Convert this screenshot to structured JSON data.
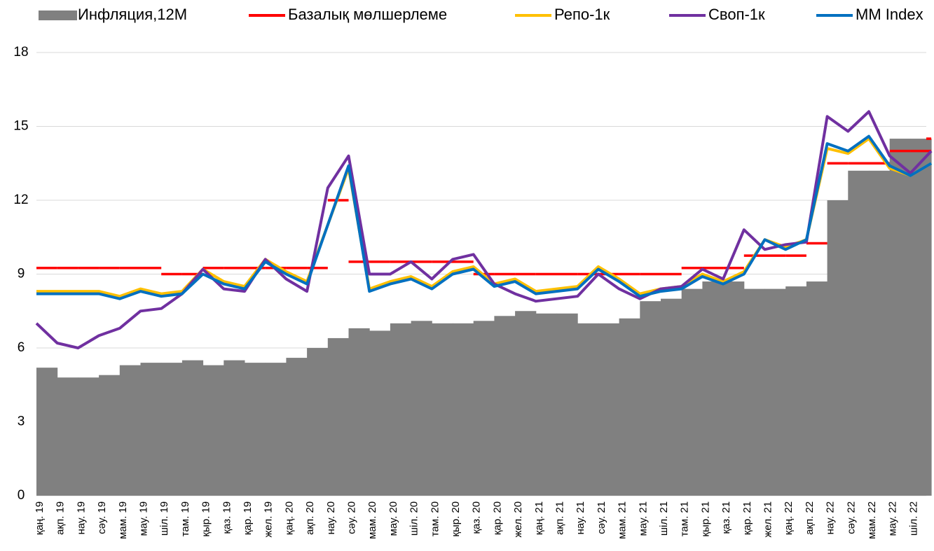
{
  "chart_data": {
    "type": "line",
    "categories": [
      "қаң. 19",
      "ақп. 19",
      "нау. 19",
      "сәу. 19",
      "мам. 19",
      "мау. 19",
      "шіл. 19",
      "там. 19",
      "қыр. 19",
      "қаз. 19",
      "қар. 19",
      "жел. 19",
      "қаң. 20",
      "ақп. 20",
      "нау. 20",
      "сәу. 20",
      "мам. 20",
      "мау. 20",
      "шіл. 20",
      "там. 20",
      "қыр. 20",
      "қаз. 20",
      "қар. 20",
      "жел. 20",
      "қаң. 21",
      "ақп. 21",
      "нау. 21",
      "сәу. 21",
      "мам. 21",
      "мау. 21",
      "шіл. 21",
      "там. 21",
      "қыр. 21",
      "қаз. 21",
      "қар. 21",
      "жел. 21",
      "қаң. 22",
      "ақп. 22",
      "нау. 22",
      "сәу. 22",
      "мам. 22",
      "мау. 22",
      "шіл. 22",
      null
    ],
    "series": [
      {
        "name": "Инфляция,12М",
        "type": "area",
        "color": "#808080",
        "values": [
          5.2,
          4.8,
          4.8,
          4.9,
          5.3,
          5.4,
          5.4,
          5.5,
          5.3,
          5.5,
          5.4,
          5.4,
          5.6,
          6.0,
          6.4,
          6.8,
          6.7,
          7.0,
          7.1,
          7.0,
          7.0,
          7.1,
          7.3,
          7.5,
          7.4,
          7.4,
          7.0,
          7.0,
          7.2,
          7.9,
          8.0,
          8.4,
          8.7,
          8.7,
          8.4,
          8.4,
          8.5,
          8.7,
          12.0,
          13.2,
          13.2,
          14.5,
          14.5,
          14.5
        ]
      },
      {
        "name": "Базалық мөлшерлеме",
        "type": "step",
        "color": "#ff0000",
        "values": [
          9.25,
          9.25,
          9.25,
          9.25,
          9.25,
          9.25,
          9.0,
          9.0,
          9.25,
          9.25,
          9.25,
          9.25,
          9.25,
          9.25,
          12.0,
          9.5,
          9.5,
          9.5,
          9.5,
          9.5,
          9.5,
          9.0,
          9.0,
          9.0,
          9.0,
          9.0,
          9.0,
          9.0,
          9.0,
          9.0,
          9.0,
          9.25,
          9.25,
          9.25,
          9.75,
          9.75,
          9.75,
          10.25,
          13.5,
          13.5,
          13.5,
          14.0,
          14.0,
          14.5
        ]
      },
      {
        "name": "Репо-1к",
        "type": "line",
        "color": "#ffc000",
        "values": [
          8.3,
          8.3,
          8.3,
          8.3,
          8.1,
          8.4,
          8.2,
          8.3,
          9.2,
          8.7,
          8.5,
          9.6,
          9.1,
          8.7,
          11.0,
          13.3,
          8.4,
          8.7,
          8.9,
          8.5,
          9.1,
          9.3,
          8.6,
          8.8,
          8.3,
          8.4,
          8.5,
          9.3,
          8.8,
          8.2,
          8.4,
          8.5,
          9.0,
          8.7,
          9.1,
          10.4,
          10.1,
          10.4,
          14.1,
          13.9,
          14.5,
          13.3,
          13.0,
          13.5
        ]
      },
      {
        "name": "Своп-1к",
        "type": "line",
        "color": "#7030a0",
        "values": [
          7.0,
          6.2,
          6.0,
          6.5,
          6.8,
          7.5,
          7.6,
          8.2,
          9.2,
          8.4,
          8.3,
          9.6,
          8.8,
          8.3,
          12.5,
          13.8,
          9.0,
          9.0,
          9.5,
          8.8,
          9.6,
          9.8,
          8.6,
          8.2,
          7.9,
          8.0,
          8.1,
          9.0,
          8.4,
          8.0,
          8.4,
          8.5,
          9.2,
          8.8,
          10.8,
          10.0,
          10.2,
          10.3,
          15.4,
          14.8,
          15.6,
          13.8,
          13.1,
          14.0
        ]
      },
      {
        "name": "MM Index",
        "type": "line",
        "color": "#0070c0",
        "values": [
          8.2,
          8.2,
          8.2,
          8.2,
          8.0,
          8.3,
          8.1,
          8.2,
          9.0,
          8.6,
          8.4,
          9.5,
          9.0,
          8.6,
          11.0,
          13.4,
          8.3,
          8.6,
          8.8,
          8.4,
          9.0,
          9.2,
          8.5,
          8.7,
          8.2,
          8.3,
          8.4,
          9.2,
          8.7,
          8.1,
          8.3,
          8.4,
          8.9,
          8.6,
          9.0,
          10.4,
          10.0,
          10.4,
          14.3,
          14.0,
          14.6,
          13.4,
          13.0,
          13.5
        ]
      }
    ],
    "ylim": [
      0,
      18
    ],
    "yticks": [
      0,
      3,
      6,
      9,
      12,
      15,
      18
    ],
    "grid": true,
    "legend": "top"
  }
}
